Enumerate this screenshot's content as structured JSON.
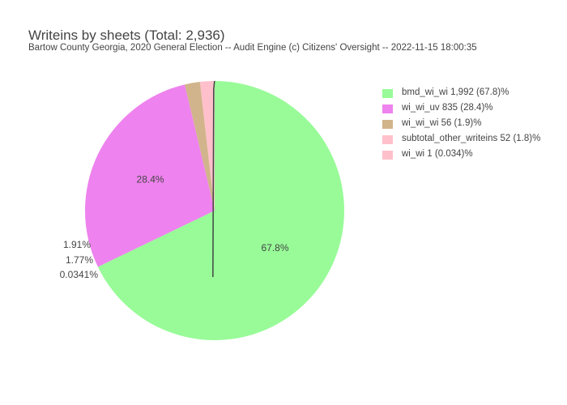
{
  "chart_data": {
    "type": "pie",
    "title": "Writeins by sheets (Total: 2,936)",
    "subtitle": "Bartow County Georgia, 2020 General Election -- Audit Engine (c) Citizens' Oversight -- 2022-11-15 18:00:35",
    "legend_position": "right",
    "slices": [
      {
        "name": "bmd_wi_wi",
        "value": 1992,
        "color": "#98FB98",
        "label": "67.8%",
        "legend": "bmd_wi_wi 1,992 (67.8)%"
      },
      {
        "name": "wi_wi_uv",
        "value": 835,
        "color": "#EE82EE",
        "label": "28.4%",
        "legend": "wi_wi_uv 835 (28.4)%"
      },
      {
        "name": "wi_wi_wi",
        "value": 56,
        "color": "#D2B48C",
        "label": "1.91%",
        "legend": "wi_wi_wi 56 (1.9)%"
      },
      {
        "name": "subtotal_other_writeins",
        "value": 52,
        "color": "#FFC0CB",
        "label": "1.77%",
        "legend": "subtotal_other_writeins 52 (1.8)%"
      },
      {
        "name": "wi_wi",
        "value": 1,
        "color": "#FFC0CB",
        "label": "0.0341%",
        "legend": "wi_wi 1 (0.034)%"
      }
    ]
  }
}
